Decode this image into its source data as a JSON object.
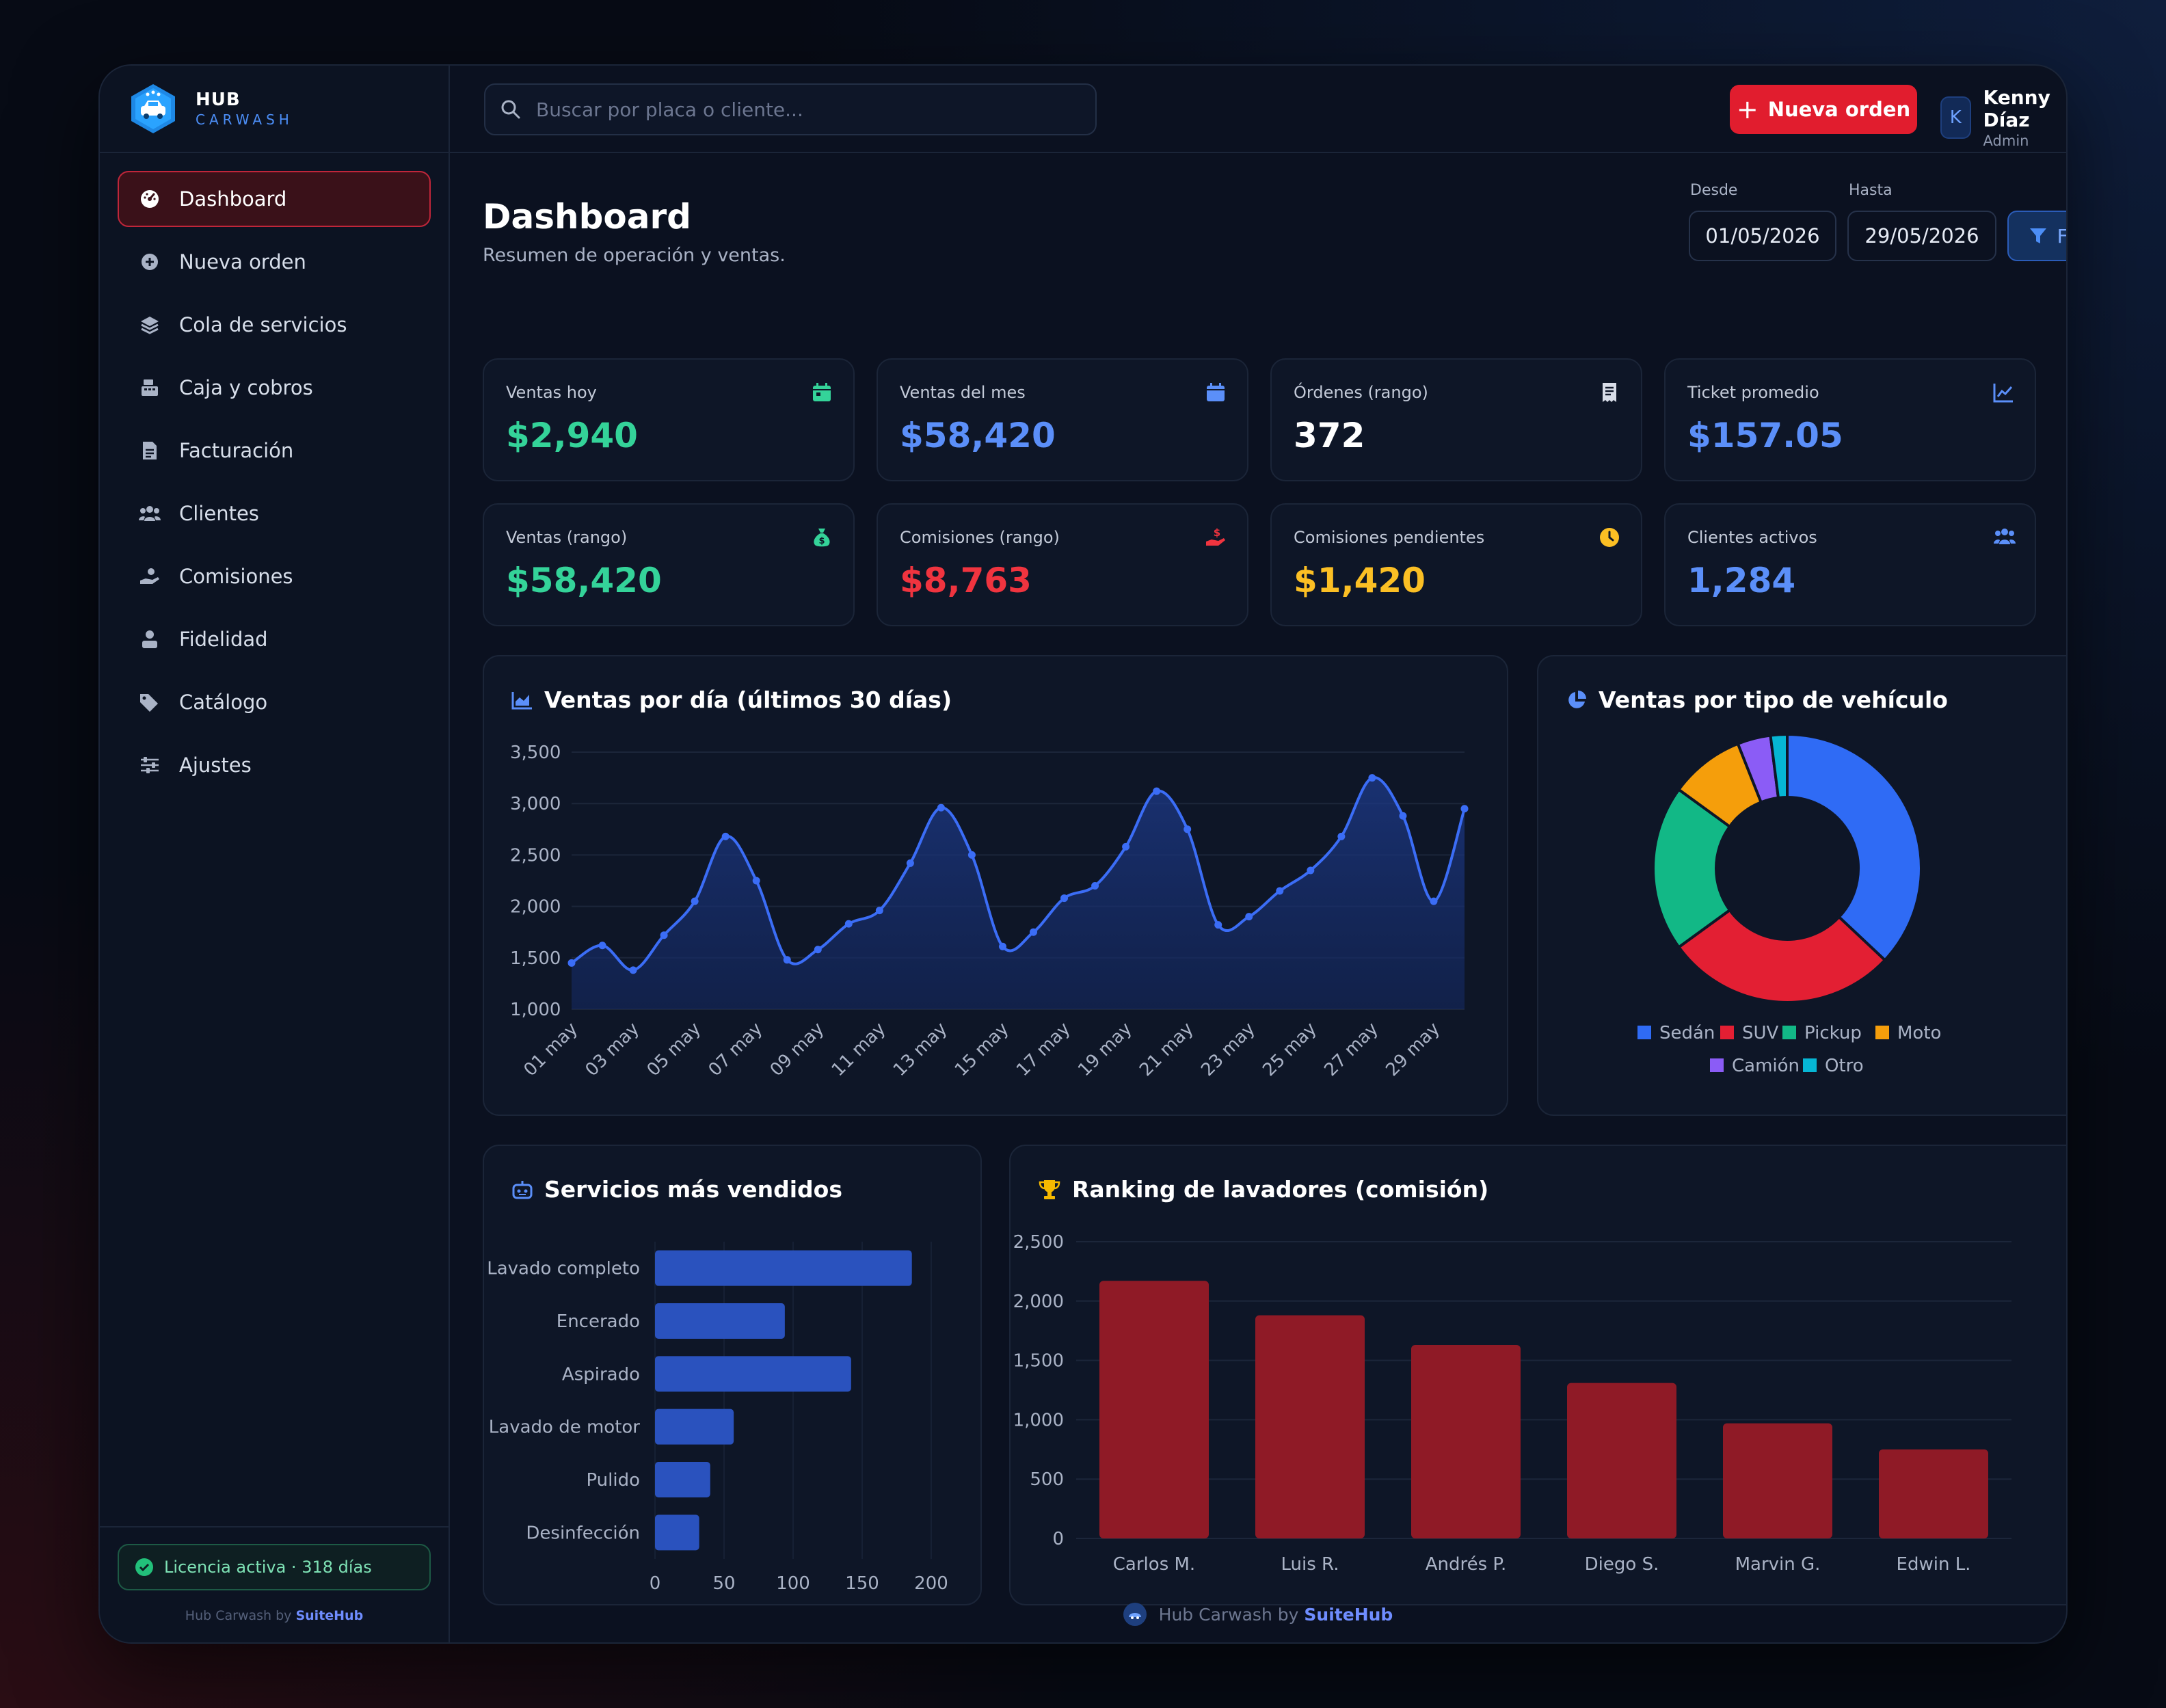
{
  "brand": {
    "title": "HUB",
    "subtitle": "CARWASH"
  },
  "search": {
    "placeholder": "Buscar por placa o cliente..."
  },
  "topbar": {
    "new_order_label": "Nueva orden"
  },
  "user": {
    "initial": "K",
    "name": "Kenny Díaz",
    "role": "Admin"
  },
  "sidebar": {
    "items": [
      {
        "label": "Dashboard",
        "icon": "gauge-icon",
        "active": true
      },
      {
        "label": "Nueva orden",
        "icon": "plus-circle-icon"
      },
      {
        "label": "Cola de servicios",
        "icon": "layers-icon"
      },
      {
        "label": "Caja y cobros",
        "icon": "cash-register-icon"
      },
      {
        "label": "Facturación",
        "icon": "invoice-icon"
      },
      {
        "label": "Clientes",
        "icon": "users-icon"
      },
      {
        "label": "Comisiones",
        "icon": "hand-coin-icon"
      },
      {
        "label": "Fidelidad",
        "icon": "user-badge-icon"
      },
      {
        "label": "Catálogo",
        "icon": "tags-icon"
      },
      {
        "label": "Ajustes",
        "icon": "sliders-icon"
      }
    ],
    "license": "Licencia activa · 318 días",
    "credit_prefix": "Hub Carwash by",
    "credit_brand": "SuiteHub"
  },
  "header": {
    "title": "Dashboard",
    "subtitle": "Resumen de operación y ventas.",
    "from_label": "Desde",
    "from_value": "01/05/2026",
    "to_label": "Hasta",
    "to_value": "29/05/2026",
    "filter_label": "Filtrar"
  },
  "stats": [
    {
      "label": "Ventas hoy",
      "value": "$2,940",
      "color": "#34d399",
      "icon": "calendar-day-icon"
    },
    {
      "label": "Ventas del mes",
      "value": "$58,420",
      "color": "#5b8ff9",
      "icon": "calendar-icon"
    },
    {
      "label": "Órdenes (rango)",
      "value": "372",
      "color": "#ffffff",
      "icon": "receipt-icon"
    },
    {
      "label": "Ticket promedio",
      "value": "$157.05",
      "color": "#5b8ff9",
      "icon": "trend-icon"
    },
    {
      "label": "Ventas (rango)",
      "value": "$58,420",
      "color": "#34d399",
      "icon": "money-bag-icon"
    },
    {
      "label": "Comisiones (rango)",
      "value": "$8,763",
      "color": "#f0343f",
      "icon": "hand-dollar-icon"
    },
    {
      "label": "Comisiones pendientes",
      "value": "$1,420",
      "color": "#fbbf24",
      "icon": "clock-icon"
    },
    {
      "label": "Clientes activos",
      "value": "1,284",
      "color": "#5b8ff9",
      "icon": "users-icon"
    }
  ],
  "charts": {
    "sales_title": "Ventas por día (últimos 30 días)",
    "vehicle_title": "Ventas por tipo de vehículo",
    "services_title": "Servicios más vendidos",
    "ranking_title": "Ranking de lavadores (comisión)"
  },
  "chart_data": [
    {
      "type": "area",
      "title": "Ventas por día (últimos 30 días)",
      "x": [
        "01 may",
        "02 may",
        "03 may",
        "04 may",
        "05 may",
        "06 may",
        "07 may",
        "08 may",
        "09 may",
        "10 may",
        "11 may",
        "12 may",
        "13 may",
        "14 may",
        "15 may",
        "16 may",
        "17 may",
        "18 may",
        "19 may",
        "20 may",
        "21 may",
        "22 may",
        "23 may",
        "24 may",
        "25 may",
        "26 may",
        "27 may",
        "28 may",
        "29 may",
        "30 may"
      ],
      "x_tick_labels": [
        "01 may",
        "03 may",
        "05 may",
        "07 may",
        "09 may",
        "11 may",
        "13 may",
        "15 may",
        "17 may",
        "19 may",
        "21 may",
        "23 may",
        "25 may",
        "27 may",
        "29 may"
      ],
      "values": [
        1450,
        1620,
        1380,
        1720,
        2050,
        2680,
        2250,
        1480,
        1580,
        1830,
        1960,
        2420,
        2960,
        2500,
        1610,
        1750,
        2080,
        2200,
        2580,
        3120,
        2750,
        1820,
        1900,
        2150,
        2350,
        2680,
        3250,
        2880,
        2050,
        2950
      ],
      "ylim": [
        1000,
        3500
      ],
      "y_ticks": [
        1000,
        1500,
        2000,
        2500,
        3000,
        3500
      ],
      "color": "#3b6df6",
      "grid": true
    },
    {
      "type": "pie",
      "title": "Ventas por tipo de vehículo",
      "categories": [
        "Sedán",
        "SUV",
        "Pickup",
        "Moto",
        "Camión",
        "Otro"
      ],
      "values": [
        37,
        28,
        20,
        9,
        4,
        2
      ],
      "colors": [
        "#2f6bf5",
        "#e31f33",
        "#12b886",
        "#f59e0b",
        "#8b5cf6",
        "#06b6d4"
      ],
      "legend": "bottom"
    },
    {
      "type": "bar",
      "orientation": "horizontal",
      "title": "Servicios más vendidos",
      "categories": [
        "Lavado completo",
        "Encerado",
        "Aspirado",
        "Lavado de motor",
        "Pulido",
        "Desinfección"
      ],
      "values": [
        186,
        94,
        142,
        57,
        40,
        32
      ],
      "xlim": [
        0,
        200
      ],
      "x_ticks": [
        0,
        50,
        100,
        150,
        200
      ],
      "color": "#2a52be"
    },
    {
      "type": "bar",
      "title": "Ranking de lavadores (comisión)",
      "categories": [
        "Carlos M.",
        "Luis R.",
        "Andrés P.",
        "Diego S.",
        "Marvin G.",
        "Edwin L."
      ],
      "values": [
        2170,
        1880,
        1630,
        1310,
        970,
        750
      ],
      "ylim": [
        0,
        2500
      ],
      "y_ticks": [
        0,
        500,
        1000,
        1500,
        2000,
        2500
      ],
      "color": "#8f1a26"
    }
  ],
  "footer": {
    "prefix": "Hub Carwash by",
    "brand": "SuiteHub"
  }
}
